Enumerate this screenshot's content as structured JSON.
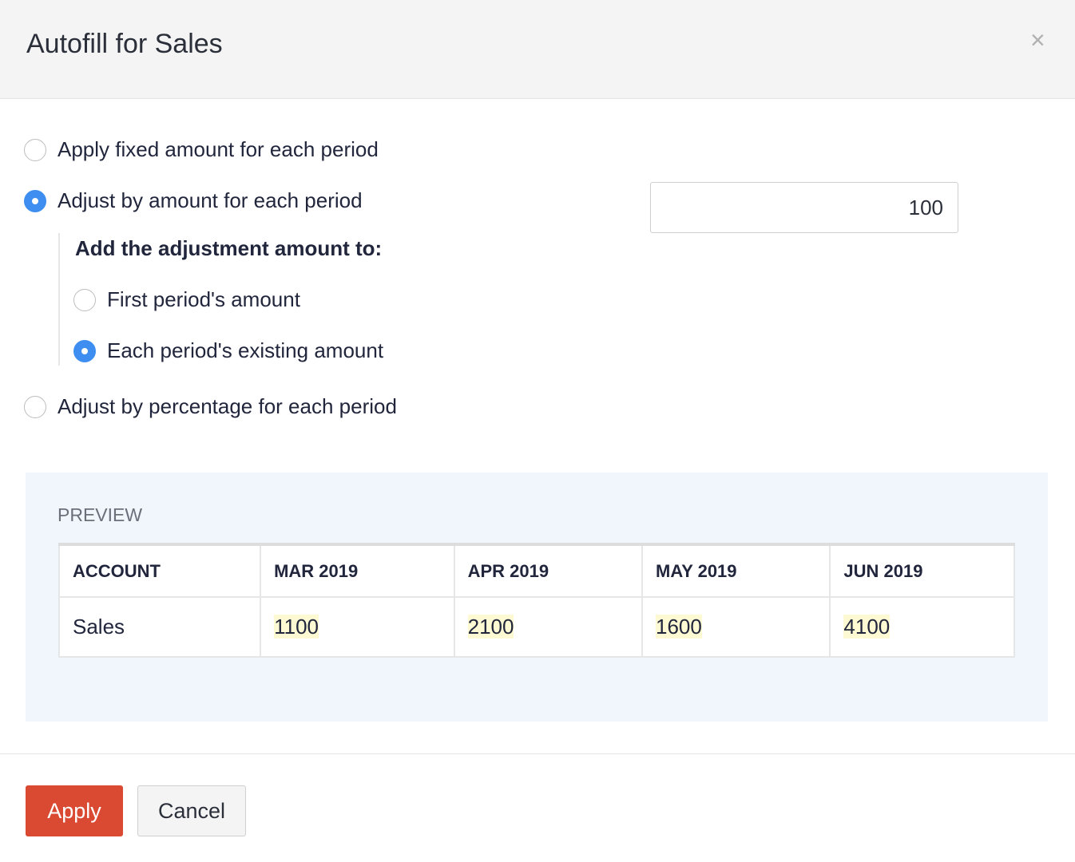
{
  "dialog": {
    "title": "Autofill for Sales",
    "close_icon": "close-icon"
  },
  "options": [
    {
      "label": "Apply fixed amount for each period",
      "selected": false
    },
    {
      "label": "Adjust by amount for each period",
      "selected": true
    },
    {
      "label": "Adjust by percentage for each period",
      "selected": false
    }
  ],
  "amount_value": "100",
  "adjustment": {
    "heading": "Add the adjustment amount to:",
    "options": [
      {
        "label": "First period's amount",
        "selected": false
      },
      {
        "label": "Each period's existing amount",
        "selected": true
      }
    ]
  },
  "preview": {
    "label": "PREVIEW",
    "headers": [
      "ACCOUNT",
      "MAR 2019",
      "APR 2019",
      "MAY 2019",
      "JUN 2019"
    ],
    "row": [
      "Sales",
      "1100",
      "2100",
      "1600",
      "4100"
    ],
    "highlight_color": "#fdf9d3"
  },
  "footer": {
    "apply": "Apply",
    "cancel": "Cancel"
  },
  "colors": {
    "accent": "#3d8ef0",
    "apply": "#da4a33"
  }
}
